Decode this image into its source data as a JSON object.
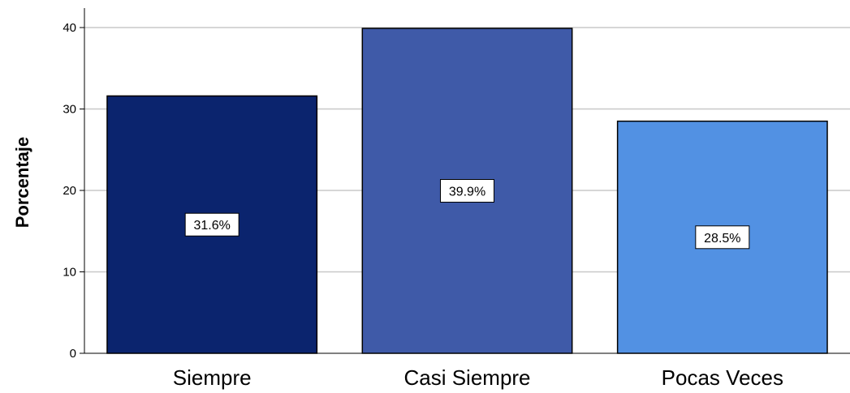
{
  "chart_data": {
    "type": "bar",
    "categories": [
      "Siempre",
      "Casi Siempre",
      "Pocas Veces"
    ],
    "values": [
      31.6,
      39.9,
      28.5
    ],
    "data_labels": [
      "31.6%",
      "39.9%",
      "28.5%"
    ],
    "colors": [
      "#0b246e",
      "#3f5aa8",
      "#5291e3"
    ],
    "title": "",
    "xlabel": "",
    "ylabel": "Porcentaje",
    "ylim": [
      0,
      40
    ],
    "yticks": [
      0,
      10,
      20,
      30,
      40
    ],
    "grid": true,
    "gridColor": "#c8c8c8",
    "legend": "none"
  }
}
